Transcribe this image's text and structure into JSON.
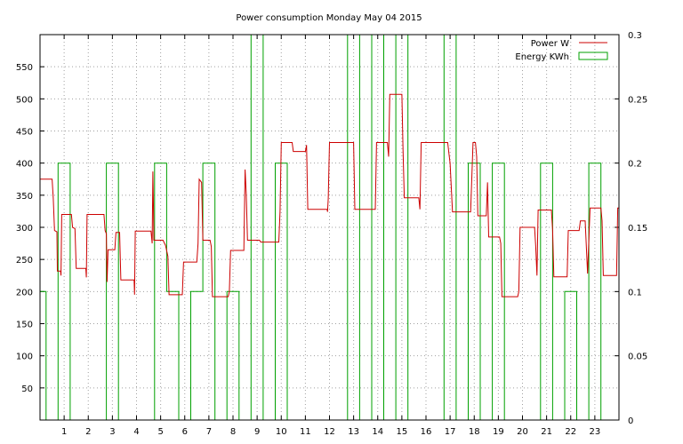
{
  "chart_data": {
    "type": "line",
    "title": "Power consumption Monday May 04 2015",
    "xlabel": "",
    "ylabel": "",
    "xlim": [
      0,
      24
    ],
    "ylim": [
      0,
      600
    ],
    "y2lim": [
      0,
      0.3
    ],
    "grid": true,
    "legend_position": "top-right",
    "x_ticks": [
      1,
      2,
      3,
      4,
      5,
      6,
      7,
      8,
      9,
      10,
      11,
      12,
      13,
      14,
      15,
      16,
      17,
      18,
      19,
      20,
      21,
      22,
      23
    ],
    "y_ticks": [
      50,
      100,
      150,
      200,
      250,
      300,
      350,
      400,
      450,
      500,
      550
    ],
    "y2_ticks": [
      0,
      0.05,
      0.1,
      0.15,
      0.2,
      0.25,
      0.3
    ],
    "series": [
      {
        "name": "Power W",
        "axis": "y1",
        "color": "#cc0000",
        "style": "step",
        "points": [
          [
            0,
            375
          ],
          [
            0.5,
            375
          ],
          [
            0.55,
            345
          ],
          [
            0.6,
            295
          ],
          [
            0.7,
            293
          ],
          [
            0.72,
            232
          ],
          [
            0.85,
            232
          ],
          [
            0.87,
            225
          ],
          [
            0.9,
            320
          ],
          [
            1.3,
            320
          ],
          [
            1.35,
            300
          ],
          [
            1.45,
            298
          ],
          [
            1.5,
            236
          ],
          [
            1.9,
            236
          ],
          [
            1.92,
            222
          ],
          [
            1.95,
            320
          ],
          [
            2.65,
            320
          ],
          [
            2.7,
            295
          ],
          [
            2.75,
            290
          ],
          [
            2.78,
            215
          ],
          [
            2.82,
            265
          ],
          [
            3.1,
            265
          ],
          [
            3.15,
            292
          ],
          [
            3.3,
            292
          ],
          [
            3.35,
            218
          ],
          [
            3.9,
            218
          ],
          [
            3.92,
            195
          ],
          [
            3.95,
            294
          ],
          [
            4.6,
            294
          ],
          [
            4.65,
            275
          ],
          [
            4.68,
            387
          ],
          [
            4.7,
            336
          ],
          [
            4.72,
            280
          ],
          [
            5.1,
            280
          ],
          [
            5.2,
            272
          ],
          [
            5.3,
            255
          ],
          [
            5.35,
            195
          ],
          [
            5.9,
            195
          ],
          [
            5.95,
            246
          ],
          [
            6.5,
            246
          ],
          [
            6.55,
            275
          ],
          [
            6.6,
            375
          ],
          [
            6.7,
            370
          ],
          [
            6.75,
            280
          ],
          [
            7.05,
            280
          ],
          [
            7.1,
            270
          ],
          [
            7.15,
            192
          ],
          [
            7.8,
            192
          ],
          [
            7.85,
            200
          ],
          [
            7.9,
            264
          ],
          [
            8.45,
            264
          ],
          [
            8.5,
            390
          ],
          [
            8.55,
            352
          ],
          [
            8.6,
            280
          ],
          [
            9.1,
            280
          ],
          [
            9.15,
            277
          ],
          [
            9.9,
            277
          ],
          [
            9.95,
            325
          ],
          [
            10,
            432
          ],
          [
            10.45,
            432
          ],
          [
            10.5,
            418
          ],
          [
            11.0,
            418
          ],
          [
            11.05,
            428
          ],
          [
            11.1,
            328
          ],
          [
            11.9,
            328
          ],
          [
            11.92,
            324
          ],
          [
            11.95,
            345
          ],
          [
            12.0,
            432
          ],
          [
            13.0,
            432
          ],
          [
            13.05,
            328
          ],
          [
            13.9,
            328
          ],
          [
            13.95,
            432
          ],
          [
            14.4,
            432
          ],
          [
            14.45,
            410
          ],
          [
            14.5,
            507
          ],
          [
            15.0,
            507
          ],
          [
            15.05,
            420
          ],
          [
            15.1,
            346
          ],
          [
            15.7,
            346
          ],
          [
            15.75,
            328
          ],
          [
            15.8,
            432
          ],
          [
            16.9,
            432
          ],
          [
            16.95,
            415
          ],
          [
            17.0,
            400
          ],
          [
            17.1,
            324
          ],
          [
            17.85,
            324
          ],
          [
            17.95,
            432
          ],
          [
            18.05,
            432
          ],
          [
            18.1,
            410
          ],
          [
            18.15,
            318
          ],
          [
            18.5,
            318
          ],
          [
            18.55,
            370
          ],
          [
            18.6,
            285
          ],
          [
            19.05,
            285
          ],
          [
            19.1,
            275
          ],
          [
            19.15,
            192
          ],
          [
            19.8,
            192
          ],
          [
            19.85,
            200
          ],
          [
            19.9,
            300
          ],
          [
            20.5,
            300
          ],
          [
            20.55,
            270
          ],
          [
            20.6,
            225
          ],
          [
            20.65,
            327
          ],
          [
            21.2,
            327
          ],
          [
            21.25,
            295
          ],
          [
            21.3,
            223
          ],
          [
            21.85,
            223
          ],
          [
            21.9,
            295
          ],
          [
            22.35,
            295
          ],
          [
            22.4,
            310
          ],
          [
            22.6,
            310
          ],
          [
            22.7,
            228
          ],
          [
            22.8,
            330
          ],
          [
            23.25,
            330
          ],
          [
            23.3,
            310
          ],
          [
            23.35,
            225
          ],
          [
            23.9,
            225
          ],
          [
            23.95,
            330
          ],
          [
            24,
            330
          ]
        ]
      },
      {
        "name": "Energy KWh",
        "axis": "y2",
        "color": "#00a000",
        "style": "impulse-steps",
        "points": [
          [
            0,
            0.1
          ],
          [
            0.25,
            0.1
          ],
          [
            0.25,
            0
          ],
          [
            0.75,
            0
          ],
          [
            0.75,
            0.2
          ],
          [
            1.25,
            0.2
          ],
          [
            1.25,
            0
          ],
          [
            2.75,
            0
          ],
          [
            2.75,
            0.2
          ],
          [
            3.25,
            0.2
          ],
          [
            3.25,
            0
          ],
          [
            4.75,
            0
          ],
          [
            4.75,
            0.2
          ],
          [
            5.25,
            0.2
          ],
          [
            5.25,
            0.1
          ],
          [
            5.75,
            0.1
          ],
          [
            5.75,
            0
          ],
          [
            6.25,
            0
          ],
          [
            6.25,
            0.1
          ],
          [
            6.75,
            0.1
          ],
          [
            6.75,
            0.2
          ],
          [
            7.25,
            0.2
          ],
          [
            7.25,
            0
          ],
          [
            7.75,
            0
          ],
          [
            7.75,
            0.1
          ],
          [
            8.25,
            0.1
          ],
          [
            8.25,
            0
          ],
          [
            8.75,
            0
          ],
          [
            8.75,
            0.3
          ],
          [
            9.25,
            0.3
          ],
          [
            9.25,
            0
          ],
          [
            9.75,
            0
          ],
          [
            9.75,
            0.2
          ],
          [
            10.25,
            0.2
          ],
          [
            10.25,
            0
          ],
          [
            12.75,
            0
          ],
          [
            12.75,
            0.3
          ],
          [
            13.25,
            0.3
          ],
          [
            13.25,
            0
          ],
          [
            13.75,
            0
          ],
          [
            13.75,
            0.3
          ],
          [
            14.25,
            0.3
          ],
          [
            14.25,
            0
          ],
          [
            14.75,
            0
          ],
          [
            14.75,
            0.3
          ],
          [
            15.25,
            0.3
          ],
          [
            15.25,
            0
          ],
          [
            16.75,
            0
          ],
          [
            16.75,
            0.3
          ],
          [
            17.25,
            0.3
          ],
          [
            17.25,
            0
          ],
          [
            17.75,
            0
          ],
          [
            17.75,
            0.2
          ],
          [
            18.25,
            0.2
          ],
          [
            18.25,
            0
          ],
          [
            18.75,
            0
          ],
          [
            18.75,
            0.2
          ],
          [
            19.25,
            0.2
          ],
          [
            19.25,
            0
          ],
          [
            20.75,
            0
          ],
          [
            20.75,
            0.2
          ],
          [
            21.25,
            0.2
          ],
          [
            21.25,
            0
          ],
          [
            21.75,
            0
          ],
          [
            21.75,
            0.1
          ],
          [
            22.25,
            0.1
          ],
          [
            22.25,
            0
          ],
          [
            22.75,
            0
          ],
          [
            22.75,
            0.2
          ],
          [
            23.25,
            0.2
          ],
          [
            23.25,
            0
          ],
          [
            24,
            0
          ]
        ]
      }
    ]
  }
}
